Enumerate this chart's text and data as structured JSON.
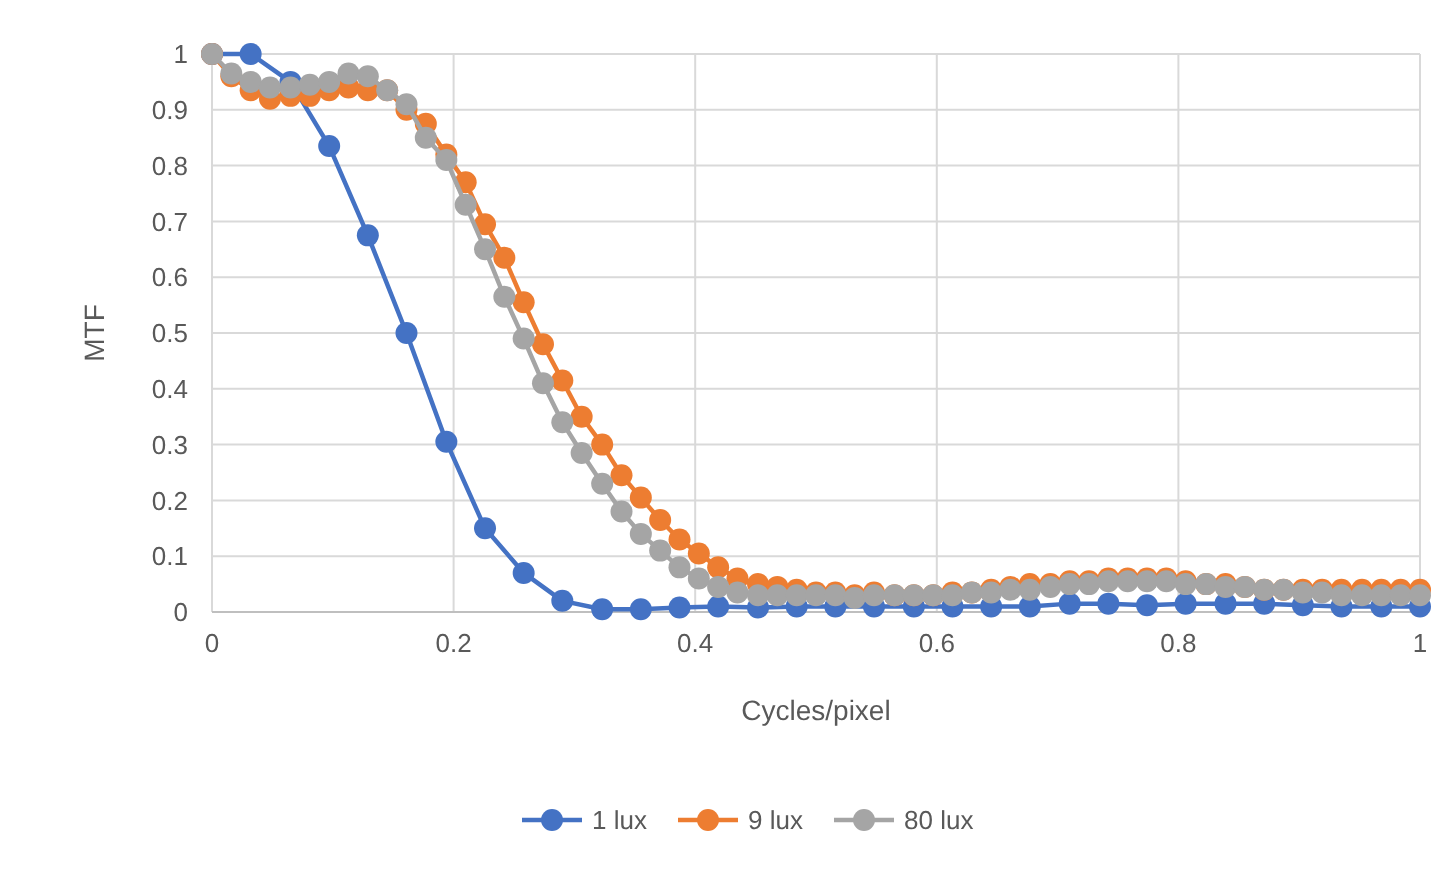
{
  "chart_data": {
    "type": "line",
    "xlabel": "Cycles/pixel",
    "ylabel": "MTF",
    "xlim": [
      0,
      1
    ],
    "xticks": [
      0,
      0.2,
      0.4,
      0.6,
      0.8,
      1
    ],
    "ylim": [
      0,
      1
    ],
    "yticks": [
      0,
      0.1,
      0.2,
      0.3,
      0.4,
      0.5,
      0.6,
      0.7,
      0.8,
      0.9,
      1
    ],
    "grid": true,
    "legend": "bottom",
    "marker": "circle",
    "line_style": "solid",
    "series": [
      {
        "name": "1 lux",
        "color": "#4472c4",
        "x": [
          0,
          0.032,
          0.065,
          0.097,
          0.129,
          0.161,
          0.194,
          0.226,
          0.258,
          0.29,
          0.323,
          0.355,
          0.387,
          0.419,
          0.452,
          0.484,
          0.516,
          0.548,
          0.581,
          0.613,
          0.645,
          0.677,
          0.71,
          0.742,
          0.774,
          0.806,
          0.839,
          0.871,
          0.903,
          0.935,
          0.968,
          1
        ],
        "values": [
          1,
          1,
          0.95,
          0.835,
          0.675,
          0.5,
          0.305,
          0.15,
          0.07,
          0.02,
          0.005,
          0.005,
          0.008,
          0.01,
          0.008,
          0.01,
          0.01,
          0.01,
          0.01,
          0.01,
          0.01,
          0.01,
          0.015,
          0.015,
          0.012,
          0.015,
          0.015,
          0.015,
          0.012,
          0.01,
          0.01,
          0.01
        ]
      },
      {
        "name": "9 lux",
        "color": "#ed7d31",
        "x": [
          0,
          0.016,
          0.032,
          0.048,
          0.065,
          0.081,
          0.097,
          0.113,
          0.129,
          0.145,
          0.161,
          0.177,
          0.194,
          0.21,
          0.226,
          0.242,
          0.258,
          0.274,
          0.29,
          0.306,
          0.323,
          0.339,
          0.355,
          0.371,
          0.387,
          0.403,
          0.419,
          0.435,
          0.452,
          0.468,
          0.484,
          0.5,
          0.516,
          0.532,
          0.548,
          0.565,
          0.581,
          0.597,
          0.613,
          0.629,
          0.645,
          0.661,
          0.677,
          0.694,
          0.71,
          0.726,
          0.742,
          0.758,
          0.774,
          0.79,
          0.806,
          0.823,
          0.839,
          0.855,
          0.871,
          0.887,
          0.903,
          0.919,
          0.935,
          0.952,
          0.968,
          0.984,
          1
        ],
        "values": [
          1,
          0.96,
          0.935,
          0.92,
          0.925,
          0.925,
          0.935,
          0.94,
          0.935,
          0.935,
          0.9,
          0.875,
          0.82,
          0.77,
          0.695,
          0.635,
          0.555,
          0.48,
          0.415,
          0.35,
          0.3,
          0.245,
          0.205,
          0.165,
          0.13,
          0.105,
          0.08,
          0.06,
          0.05,
          0.045,
          0.04,
          0.035,
          0.035,
          0.03,
          0.035,
          0.03,
          0.03,
          0.03,
          0.035,
          0.035,
          0.04,
          0.045,
          0.05,
          0.05,
          0.055,
          0.055,
          0.06,
          0.06,
          0.06,
          0.06,
          0.055,
          0.05,
          0.05,
          0.045,
          0.04,
          0.04,
          0.04,
          0.04,
          0.04,
          0.04,
          0.04,
          0.04,
          0.04
        ]
      },
      {
        "name": "80 lux",
        "color": "#a5a5a5",
        "x": [
          0,
          0.016,
          0.032,
          0.048,
          0.065,
          0.081,
          0.097,
          0.113,
          0.129,
          0.145,
          0.161,
          0.177,
          0.194,
          0.21,
          0.226,
          0.242,
          0.258,
          0.274,
          0.29,
          0.306,
          0.323,
          0.339,
          0.355,
          0.371,
          0.387,
          0.403,
          0.419,
          0.435,
          0.452,
          0.468,
          0.484,
          0.5,
          0.516,
          0.532,
          0.548,
          0.565,
          0.581,
          0.597,
          0.613,
          0.629,
          0.645,
          0.661,
          0.677,
          0.694,
          0.71,
          0.726,
          0.742,
          0.758,
          0.774,
          0.79,
          0.806,
          0.823,
          0.839,
          0.855,
          0.871,
          0.887,
          0.903,
          0.919,
          0.935,
          0.952,
          0.968,
          0.984,
          1
        ],
        "values": [
          1,
          0.965,
          0.95,
          0.94,
          0.94,
          0.945,
          0.95,
          0.965,
          0.96,
          0.935,
          0.91,
          0.85,
          0.81,
          0.73,
          0.65,
          0.565,
          0.49,
          0.41,
          0.34,
          0.285,
          0.23,
          0.18,
          0.14,
          0.11,
          0.08,
          0.06,
          0.045,
          0.035,
          0.03,
          0.03,
          0.03,
          0.03,
          0.03,
          0.025,
          0.03,
          0.03,
          0.03,
          0.03,
          0.03,
          0.035,
          0.035,
          0.04,
          0.04,
          0.045,
          0.05,
          0.05,
          0.055,
          0.055,
          0.055,
          0.055,
          0.05,
          0.05,
          0.045,
          0.045,
          0.04,
          0.04,
          0.035,
          0.035,
          0.03,
          0.03,
          0.03,
          0.03,
          0.03
        ]
      }
    ]
  }
}
